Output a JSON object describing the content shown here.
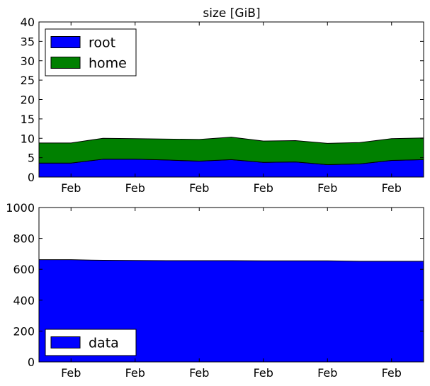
{
  "chart_data": [
    {
      "type": "area",
      "stacked": true,
      "title": "size [GiB]",
      "xlabel": "",
      "ylabel": "",
      "ylim": [
        0,
        40
      ],
      "yticks": [
        0,
        5,
        10,
        15,
        20,
        25,
        30,
        35,
        40
      ],
      "xticks": [
        "Feb",
        "Feb",
        "Feb",
        "Feb",
        "Feb",
        "Feb"
      ],
      "legend_position": "top-left",
      "grid": false,
      "x": [
        0,
        1,
        2,
        3,
        4,
        5,
        6,
        7,
        8,
        9,
        10,
        11,
        12
      ],
      "series": [
        {
          "name": "root",
          "color": "#0000ff",
          "values": [
            3.6,
            3.6,
            4.6,
            4.6,
            4.4,
            4.1,
            4.5,
            3.8,
            3.9,
            3.2,
            3.4,
            4.3,
            4.5
          ]
        },
        {
          "name": "home",
          "color": "#008000",
          "values": [
            5.2,
            5.2,
            5.4,
            5.3,
            5.4,
            5.6,
            5.8,
            5.5,
            5.5,
            5.5,
            5.5,
            5.6,
            5.6
          ]
        }
      ]
    },
    {
      "type": "area",
      "stacked": true,
      "title": "",
      "xlabel": "",
      "ylabel": "",
      "ylim": [
        0,
        1000
      ],
      "yticks": [
        0,
        200,
        400,
        600,
        800,
        1000
      ],
      "xticks": [
        "Feb",
        "Feb",
        "Feb",
        "Feb",
        "Feb",
        "Feb"
      ],
      "legend_position": "bottom-left",
      "grid": false,
      "x": [
        0,
        1,
        2,
        3,
        4,
        5,
        6,
        7,
        8,
        9,
        10,
        11,
        12
      ],
      "series": [
        {
          "name": "data",
          "color": "#0000ff",
          "values": [
            662,
            662,
            658,
            657,
            656,
            656,
            656,
            655,
            655,
            655,
            652,
            652,
            652
          ]
        }
      ]
    }
  ]
}
